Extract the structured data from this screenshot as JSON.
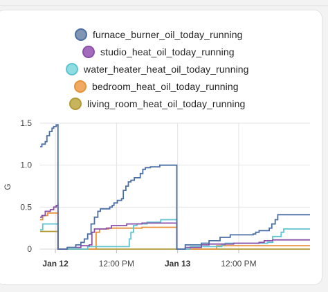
{
  "chart_data": {
    "type": "line",
    "ylabel": "G",
    "ylim": [
      0,
      1.5
    ],
    "xlim": [
      "2024-01-11T21:00",
      "2024-01-14T02:00"
    ],
    "yticks": [
      {
        "value": 0,
        "label": "0"
      },
      {
        "value": 0.5,
        "label": "0.5"
      },
      {
        "value": 1.0,
        "label": "1.0"
      },
      {
        "value": 1.5,
        "label": "1.5"
      }
    ],
    "xticks": [
      {
        "t": "2024-01-12T00:00",
        "label": "Jan 12",
        "bold": true
      },
      {
        "t": "2024-01-12T12:00",
        "label": "12:00 PM",
        "bold": false
      },
      {
        "t": "2024-01-13T00:00",
        "label": "Jan 13",
        "bold": true
      },
      {
        "t": "2024-01-13T12:00",
        "label": "12:00 PM",
        "bold": false
      }
    ],
    "series": [
      {
        "name": "furnace_burner_oil_today_running",
        "color": "#4a6fa5",
        "fill": "#8094b4",
        "points": [
          [
            "2024-01-11T21:00",
            1.22
          ],
          [
            "2024-01-11T21:20",
            1.25
          ],
          [
            "2024-01-11T22:00",
            1.28
          ],
          [
            "2024-01-11T22:20",
            1.35
          ],
          [
            "2024-01-11T22:50",
            1.4
          ],
          [
            "2024-01-11T23:20",
            1.44
          ],
          [
            "2024-01-11T23:40",
            1.46
          ],
          [
            "2024-01-12T00:10",
            1.48
          ],
          [
            "2024-01-12T00:30",
            1.49
          ],
          [
            "2024-01-12T00:30",
            0.0
          ],
          [
            "2024-01-12T01:30",
            0.0
          ],
          [
            "2024-01-12T02:20",
            0.02
          ],
          [
            "2024-01-12T04:00",
            0.05
          ],
          [
            "2024-01-12T05:00",
            0.08
          ],
          [
            "2024-01-12T05:40",
            0.12
          ],
          [
            "2024-01-12T06:20",
            0.18
          ],
          [
            "2024-01-12T07:00",
            0.3
          ],
          [
            "2024-01-12T07:40",
            0.38
          ],
          [
            "2024-01-12T08:20",
            0.45
          ],
          [
            "2024-01-12T08:50",
            0.48
          ],
          [
            "2024-01-12T10:40",
            0.5
          ],
          [
            "2024-01-12T11:10",
            0.52
          ],
          [
            "2024-01-12T11:30",
            0.55
          ],
          [
            "2024-01-12T12:10",
            0.58
          ],
          [
            "2024-01-12T13:00",
            0.6
          ],
          [
            "2024-01-12T13:20",
            0.7
          ],
          [
            "2024-01-12T13:50",
            0.75
          ],
          [
            "2024-01-12T14:20",
            0.8
          ],
          [
            "2024-01-12T14:50",
            0.82
          ],
          [
            "2024-01-12T15:30",
            0.85
          ],
          [
            "2024-01-12T16:40",
            0.9
          ],
          [
            "2024-01-12T17:10",
            0.95
          ],
          [
            "2024-01-12T17:40",
            0.97
          ],
          [
            "2024-01-12T18:40",
            0.98
          ],
          [
            "2024-01-12T20:30",
            1.0
          ],
          [
            "2024-01-12T23:50",
            1.0
          ],
          [
            "2024-01-12T23:50",
            0.0
          ],
          [
            "2024-01-13T01:00",
            0.0
          ],
          [
            "2024-01-13T01:30",
            0.05
          ],
          [
            "2024-01-13T04:40",
            0.07
          ],
          [
            "2024-01-13T06:10",
            0.1
          ],
          [
            "2024-01-13T08:20",
            0.14
          ],
          [
            "2024-01-13T10:20",
            0.17
          ],
          [
            "2024-01-13T14:50",
            0.18
          ],
          [
            "2024-01-13T15:20",
            0.2
          ],
          [
            "2024-01-13T16:00",
            0.22
          ],
          [
            "2024-01-13T18:00",
            0.25
          ],
          [
            "2024-01-13T18:30",
            0.3
          ],
          [
            "2024-01-13T19:10",
            0.35
          ],
          [
            "2024-01-13T19:40",
            0.41
          ],
          [
            "2024-01-14T02:00",
            0.41
          ]
        ]
      },
      {
        "name": "studio_heat_oil_today_running",
        "color": "#8a4fa8",
        "fill": "#a36bbb",
        "points": [
          [
            "2024-01-11T21:00",
            0.38
          ],
          [
            "2024-01-11T21:20",
            0.4
          ],
          [
            "2024-01-11T22:00",
            0.45
          ],
          [
            "2024-01-11T23:00",
            0.47
          ],
          [
            "2024-01-11T23:40",
            0.5
          ],
          [
            "2024-01-12T00:10",
            0.52
          ],
          [
            "2024-01-12T00:30",
            0.55
          ],
          [
            "2024-01-12T00:30",
            0.0
          ],
          [
            "2024-01-12T01:30",
            0.0
          ],
          [
            "2024-01-12T02:20",
            0.02
          ],
          [
            "2024-01-12T05:00",
            0.04
          ],
          [
            "2024-01-12T06:40",
            0.05
          ],
          [
            "2024-01-12T07:10",
            0.2
          ],
          [
            "2024-01-12T07:40",
            0.24
          ],
          [
            "2024-01-12T10:00",
            0.25
          ],
          [
            "2024-01-12T11:00",
            0.28
          ],
          [
            "2024-01-12T14:00",
            0.3
          ],
          [
            "2024-01-12T17:00",
            0.31
          ],
          [
            "2024-01-12T23:50",
            0.31
          ],
          [
            "2024-01-12T23:50",
            0.0
          ],
          [
            "2024-01-13T01:30",
            0.02
          ],
          [
            "2024-01-13T04:40",
            0.05
          ],
          [
            "2024-01-13T06:10",
            0.06
          ],
          [
            "2024-01-13T11:00",
            0.07
          ],
          [
            "2024-01-13T16:00",
            0.08
          ],
          [
            "2024-01-13T17:00",
            0.1
          ],
          [
            "2024-01-13T18:40",
            0.11
          ],
          [
            "2024-01-14T02:00",
            0.11
          ]
        ]
      },
      {
        "name": "water_heater_heat_oil_today_running",
        "color": "#5ec4cf",
        "fill": "#8ddde3",
        "points": [
          [
            "2024-01-11T21:00",
            0.23
          ],
          [
            "2024-01-11T21:30",
            0.3
          ],
          [
            "2024-01-12T00:30",
            0.3
          ],
          [
            "2024-01-12T00:30",
            0.0
          ],
          [
            "2024-01-12T06:00",
            0.0
          ],
          [
            "2024-01-12T06:20",
            0.03
          ],
          [
            "2024-01-12T13:50",
            0.03
          ],
          [
            "2024-01-12T14:30",
            0.12
          ],
          [
            "2024-01-12T14:50",
            0.2
          ],
          [
            "2024-01-12T15:20",
            0.28
          ],
          [
            "2024-01-12T16:00",
            0.3
          ],
          [
            "2024-01-12T18:00",
            0.32
          ],
          [
            "2024-01-12T20:40",
            0.35
          ],
          [
            "2024-01-12T23:50",
            0.36
          ],
          [
            "2024-01-12T23:50",
            0.0
          ],
          [
            "2024-01-13T01:00",
            0.0
          ],
          [
            "2024-01-13T02:30",
            0.03
          ],
          [
            "2024-01-13T08:40",
            0.05
          ],
          [
            "2024-01-13T09:20",
            0.07
          ],
          [
            "2024-01-13T17:40",
            0.08
          ],
          [
            "2024-01-13T18:40",
            0.15
          ],
          [
            "2024-01-13T20:20",
            0.2
          ],
          [
            "2024-01-13T20:50",
            0.24
          ],
          [
            "2024-01-14T02:00",
            0.24
          ]
        ]
      },
      {
        "name": "bedroom_heat_oil_today_running",
        "color": "#e8913a",
        "fill": "#f1aa63",
        "points": [
          [
            "2024-01-11T21:00",
            0.35
          ],
          [
            "2024-01-11T21:30",
            0.4
          ],
          [
            "2024-01-11T22:30",
            0.43
          ],
          [
            "2024-01-12T00:30",
            0.44
          ],
          [
            "2024-01-12T00:30",
            0.0
          ],
          [
            "2024-01-12T07:20",
            0.0
          ],
          [
            "2024-01-12T08:00",
            0.2
          ],
          [
            "2024-01-12T08:40",
            0.24
          ],
          [
            "2024-01-12T10:30",
            0.25
          ],
          [
            "2024-01-12T14:00",
            0.25
          ],
          [
            "2024-01-12T17:00",
            0.26
          ],
          [
            "2024-01-12T23:50",
            0.26
          ],
          [
            "2024-01-12T23:50",
            0.0
          ],
          [
            "2024-01-13T07:00",
            0.0
          ],
          [
            "2024-01-13T07:40",
            0.04
          ],
          [
            "2024-01-14T02:00",
            0.04
          ]
        ]
      },
      {
        "name": "living_room_heat_oil_today_running",
        "color": "#b39a34",
        "fill": "#c7b45d",
        "points": [
          [
            "2024-01-11T21:00",
            0.21
          ],
          [
            "2024-01-12T00:30",
            0.21
          ],
          [
            "2024-01-12T00:30",
            0.0
          ],
          [
            "2024-01-14T02:00",
            0.0
          ]
        ]
      }
    ]
  }
}
